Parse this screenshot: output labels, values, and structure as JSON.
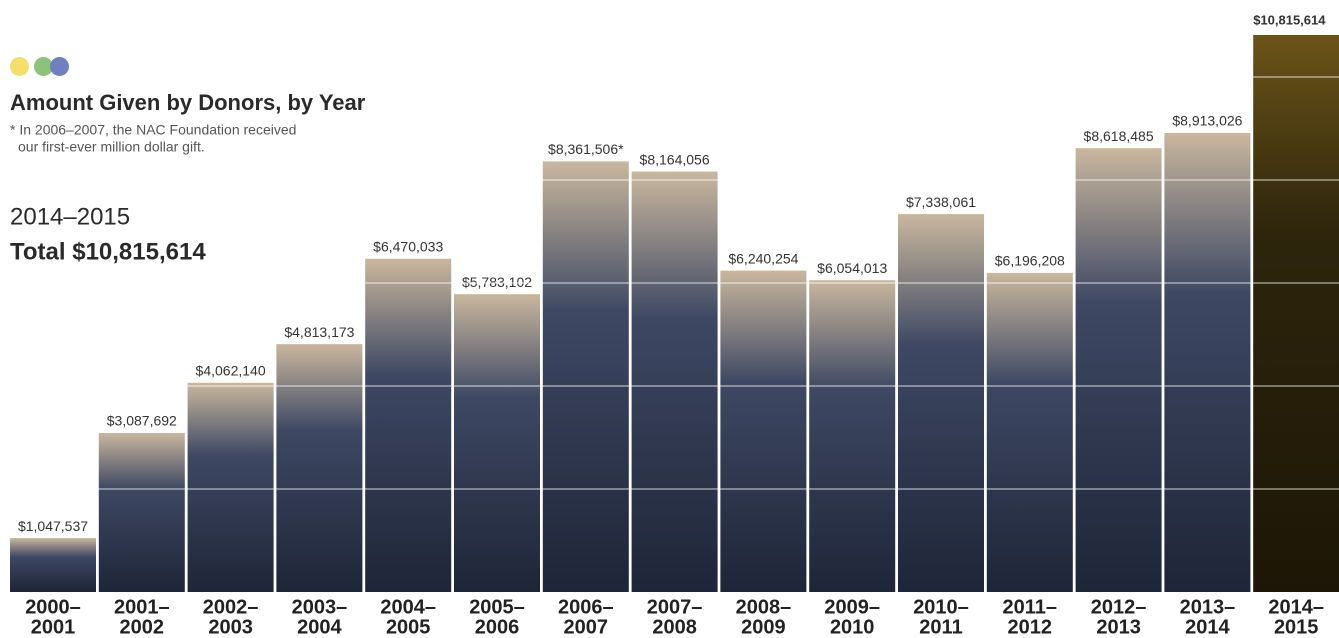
{
  "chart_data": {
    "type": "bar",
    "title": "Amount Given by Donors, by Year",
    "note": [
      "* In 2006–2007, the NAC Foundation received",
      "our first-ever million dollar gift."
    ],
    "subtitle": "2014–2015",
    "total_label": "Total $10,815,614",
    "categories": [
      [
        "2000–",
        "2001"
      ],
      [
        "2001–",
        "2002"
      ],
      [
        "2002–",
        "2003"
      ],
      [
        "2003–",
        "2004"
      ],
      [
        "2004–",
        "2005"
      ],
      [
        "2005–",
        "2006"
      ],
      [
        "2006–",
        "2007"
      ],
      [
        "2007–",
        "2008"
      ],
      [
        "2008–",
        "2009"
      ],
      [
        "2009–",
        "2010"
      ],
      [
        "2010–",
        "2011"
      ],
      [
        "2011–",
        "2012"
      ],
      [
        "2012–",
        "2013"
      ],
      [
        "2013–",
        "2014"
      ],
      [
        "2014–",
        "2015"
      ]
    ],
    "values": [
      1047537,
      3087692,
      4062140,
      4813173,
      6470033,
      5783102,
      8361506,
      8164056,
      6240254,
      6054013,
      7338061,
      6196208,
      8618485,
      8913026,
      10815614
    ],
    "value_labels": [
      "$1,047,537",
      "$3,087,692",
      "$4,062,140",
      "$4,813,173",
      "$6,470,033",
      "$5,783,102",
      "$8,361,506*",
      "$8,164,056",
      "$6,240,254",
      "$6,054,013",
      "$7,338,061",
      "$6,196,208",
      "$8,618,485",
      "$8,913,026",
      "$10,815,614"
    ],
    "colors": [
      "#3e4863",
      "#3e4863",
      "#3e4863",
      "#3e4863",
      "#3e4863",
      "#3e4863",
      "#3e4863",
      "#3e4863",
      "#3e4863",
      "#3e4863",
      "#3e4863",
      "#3e4863",
      "#3e4863",
      "#3e4863",
      "#2e250c"
    ],
    "yticks": [
      2000000,
      4000000,
      6000000,
      8000000,
      10000000
    ],
    "grid": true
  }
}
